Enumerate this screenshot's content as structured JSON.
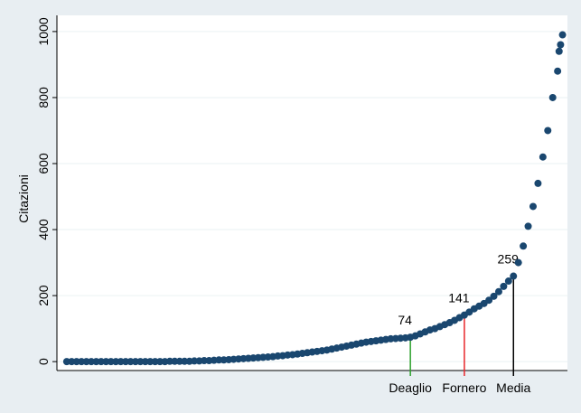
{
  "chart_data": {
    "type": "scatter",
    "y_label": "Citazioni",
    "color": "#1a476f",
    "x": [
      0,
      1,
      2,
      3,
      4,
      5,
      6,
      7,
      8,
      9,
      10,
      11,
      12,
      13,
      14,
      15,
      16,
      17,
      18,
      19,
      20,
      21,
      22,
      23,
      24,
      25,
      26,
      27,
      28,
      29,
      30,
      31,
      32,
      33,
      34,
      35,
      36,
      37,
      38,
      39,
      40,
      41,
      42,
      43,
      44,
      45,
      46,
      47,
      48,
      49,
      50,
      51,
      52,
      53,
      54,
      55,
      56,
      57,
      58,
      59,
      60,
      61,
      62,
      63,
      64,
      65,
      66,
      67,
      68,
      69,
      70,
      71,
      72,
      73,
      74,
      75,
      76,
      77,
      78,
      79,
      80,
      81,
      82,
      83,
      84,
      85,
      86,
      87,
      88,
      89,
      90,
      91,
      92,
      93,
      94,
      95,
      96,
      97,
      98,
      99,
      100,
      100.3,
      100.6,
      101
    ],
    "values": [
      0,
      0,
      0,
      0,
      0,
      0,
      0,
      0,
      0,
      0,
      0,
      0,
      0,
      0,
      0,
      0,
      0,
      0,
      0,
      0,
      0,
      1,
      1,
      1,
      1,
      1,
      2,
      2,
      3,
      3,
      4,
      5,
      5,
      6,
      7,
      8,
      9,
      10,
      11,
      12,
      13,
      14,
      15,
      17,
      18,
      20,
      21,
      23,
      25,
      27,
      29,
      31,
      33,
      35,
      38,
      41,
      44,
      47,
      50,
      53,
      56,
      59,
      61,
      63,
      65,
      67,
      69,
      70,
      71,
      72,
      74,
      78,
      84,
      90,
      96,
      100,
      106,
      112,
      118,
      125,
      133,
      141,
      150,
      160,
      168,
      176,
      186,
      198,
      212,
      228,
      244,
      259,
      300,
      350,
      410,
      470,
      540,
      620,
      700,
      800,
      880,
      940,
      960,
      990
    ],
    "xlim": [
      -2,
      102
    ],
    "ylim": [
      -27,
      1049
    ],
    "yticks": [
      0,
      200,
      400,
      600,
      800,
      1000
    ],
    "grid": true,
    "references": [
      {
        "label": "Deaglio",
        "x": 70,
        "value": 74,
        "color": "#2ca02c"
      },
      {
        "label": "Fornero",
        "x": 81,
        "value": 141,
        "color": "#e8262b"
      },
      {
        "label": "Media",
        "x": 91,
        "value": 259,
        "color": "#000000"
      }
    ]
  }
}
